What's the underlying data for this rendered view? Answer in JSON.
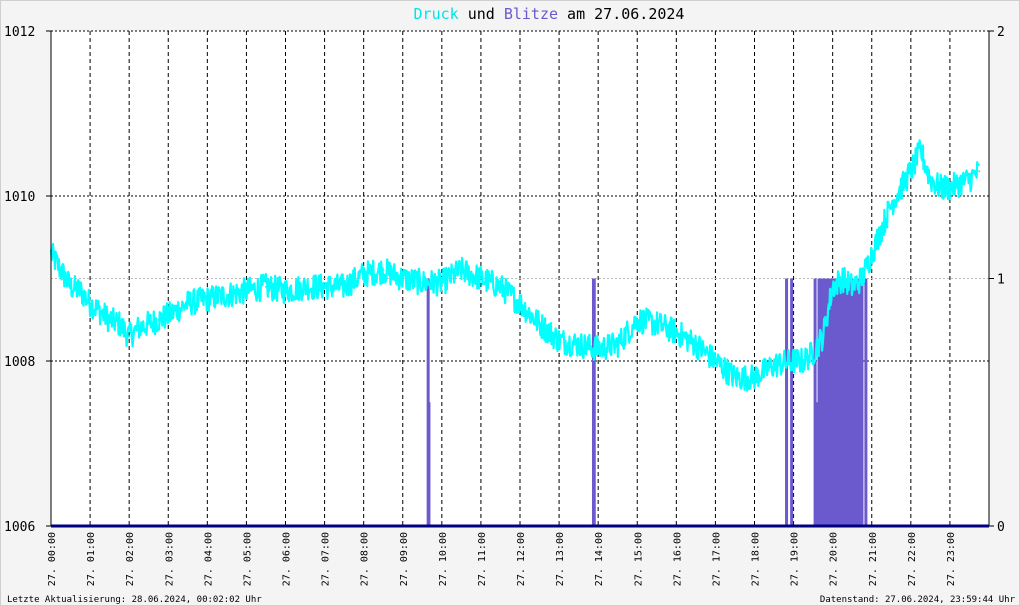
{
  "title": {
    "part1": "Druck",
    "part2": " und ",
    "part3": "Blitze",
    "part4": " am 27.06.2024"
  },
  "footer": {
    "left": "Letzte Aktualisierung: 28.06.2024, 00:02:02 Uhr",
    "right": "Datenstand: 27.06.2024, 23:59:44 Uhr"
  },
  "colors": {
    "pressure": "#00ffff",
    "lightning": "#6a5acd",
    "title_pressure": "#00e5e5",
    "title_lightning": "#6a5acd",
    "axis": "#000080",
    "grid": "#000000",
    "background": "#ffffff"
  },
  "chart_data": {
    "type": "line",
    "grid": true,
    "x_range_hours": [
      0,
      24
    ],
    "x_tick_labels": [
      "27. 00:00",
      "27. 01:00",
      "27. 02:00",
      "27. 03:00",
      "27. 04:00",
      "27. 05:00",
      "27. 06:00",
      "27. 07:00",
      "27. 08:00",
      "27. 09:00",
      "27. 10:00",
      "27. 11:00",
      "27. 12:00",
      "27. 13:00",
      "27. 14:00",
      "27. 15:00",
      "27. 16:00",
      "27. 17:00",
      "27. 18:00",
      "27. 19:00",
      "27. 20:00",
      "27. 21:00",
      "27. 22:00",
      "27. 23:00"
    ],
    "y_left": {
      "ylim": [
        1006,
        1012
      ],
      "ticks": [
        "1006",
        "1008",
        "1010",
        "1012"
      ]
    },
    "y_right": {
      "ylim": [
        0,
        2
      ],
      "ticks": [
        "0",
        "1",
        "2"
      ]
    },
    "series": [
      {
        "name": "Druck",
        "axis": "left",
        "x_hours": [
          0,
          0.25,
          0.5,
          0.75,
          1.0,
          1.25,
          1.5,
          1.75,
          2.0,
          2.25,
          2.5,
          2.75,
          3.0,
          3.5,
          4.0,
          4.5,
          5.0,
          5.5,
          6.0,
          6.5,
          7.0,
          7.5,
          8.0,
          8.5,
          9.0,
          9.5,
          10.0,
          10.5,
          11.0,
          11.5,
          12.0,
          12.5,
          13.0,
          13.5,
          14.0,
          14.5,
          15.0,
          15.5,
          16.0,
          16.5,
          17.0,
          17.5,
          18.0,
          18.5,
          19.0,
          19.25,
          19.5,
          19.75,
          20.0,
          20.25,
          20.5,
          20.75,
          21.0,
          21.25,
          21.5,
          21.75,
          22.0,
          22.25,
          22.5,
          22.75,
          23.0,
          23.25,
          23.5,
          23.75,
          24.0
        ],
        "values": [
          1009.3,
          1009.1,
          1008.9,
          1008.85,
          1008.7,
          1008.6,
          1008.5,
          1008.45,
          1008.3,
          1008.4,
          1008.45,
          1008.5,
          1008.55,
          1008.7,
          1008.75,
          1008.8,
          1008.85,
          1008.9,
          1008.85,
          1008.9,
          1008.9,
          1008.9,
          1009.05,
          1009.1,
          1009.0,
          1008.95,
          1008.95,
          1009.1,
          1009.0,
          1008.9,
          1008.7,
          1008.45,
          1008.25,
          1008.2,
          1008.15,
          1008.2,
          1008.5,
          1008.45,
          1008.35,
          1008.2,
          1008.0,
          1007.8,
          1007.8,
          1007.95,
          1008.0,
          1008.0,
          1008.1,
          1008.3,
          1008.9,
          1009.0,
          1008.9,
          1009.0,
          1009.3,
          1009.6,
          1009.9,
          1010.1,
          1010.3,
          1010.55,
          1010.2,
          1010.1,
          1010.1,
          1010.15,
          1010.2,
          1010.3,
          1010.45
        ]
      },
      {
        "name": "Blitze",
        "axis": "right",
        "kind": "impulse",
        "events": [
          {
            "hour": 9.65,
            "value": 1.0
          },
          {
            "hour": 9.67,
            "value": 0.5
          },
          {
            "hour": 13.88,
            "value": 1.0
          },
          {
            "hour": 13.9,
            "value": 1.0
          },
          {
            "hour": 18.82,
            "value": 1.0
          },
          {
            "hour": 18.95,
            "value": 1.0
          },
          {
            "hour": 19.55,
            "value": 1.0
          },
          {
            "hour": 19.6,
            "value": 0.5
          },
          {
            "hour": 19.65,
            "value": 1.0
          },
          {
            "hour": 19.7,
            "value": 1.0
          },
          {
            "hour": 19.75,
            "value": 1.0
          },
          {
            "hour": 19.8,
            "value": 1.0
          },
          {
            "hour": 19.85,
            "value": 1.0
          },
          {
            "hour": 19.9,
            "value": 1.0
          },
          {
            "hour": 19.95,
            "value": 1.0
          },
          {
            "hour": 20.0,
            "value": 1.0
          },
          {
            "hour": 20.05,
            "value": 1.0
          },
          {
            "hour": 20.1,
            "value": 1.0
          },
          {
            "hour": 20.15,
            "value": 1.0
          },
          {
            "hour": 20.2,
            "value": 1.0
          },
          {
            "hour": 20.25,
            "value": 1.0
          },
          {
            "hour": 20.3,
            "value": 1.0
          },
          {
            "hour": 20.35,
            "value": 1.0
          },
          {
            "hour": 20.4,
            "value": 1.0
          },
          {
            "hour": 20.45,
            "value": 1.0
          },
          {
            "hour": 20.5,
            "value": 1.0
          },
          {
            "hour": 20.55,
            "value": 1.0
          },
          {
            "hour": 20.6,
            "value": 1.0
          },
          {
            "hour": 20.65,
            "value": 1.0
          },
          {
            "hour": 20.7,
            "value": 1.0
          },
          {
            "hour": 20.75,
            "value": 1.0
          },
          {
            "hour": 20.85,
            "value": 1.0
          }
        ]
      }
    ]
  }
}
